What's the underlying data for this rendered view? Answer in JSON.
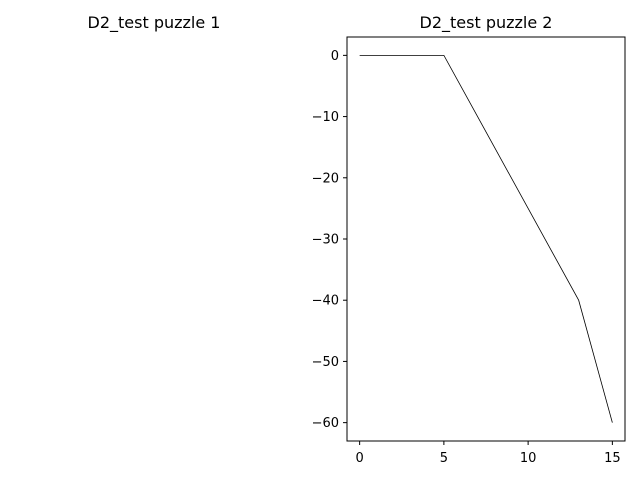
{
  "chart_data": [
    {
      "type": "line",
      "title": "D2_test puzzle 1",
      "series": []
    },
    {
      "type": "line",
      "title": "D2_test puzzle 2",
      "xlim": [
        -0.75,
        15.75
      ],
      "ylim": [
        -63,
        3
      ],
      "xticks": [
        0,
        5,
        10,
        15
      ],
      "yticks": [
        0,
        -10,
        -20,
        -30,
        -40,
        -50,
        -60
      ],
      "grid": false,
      "series": [
        {
          "color": "#000000",
          "x": [
            0,
            5,
            13,
            15
          ],
          "y": [
            0,
            0,
            -40,
            -60
          ]
        }
      ]
    }
  ]
}
